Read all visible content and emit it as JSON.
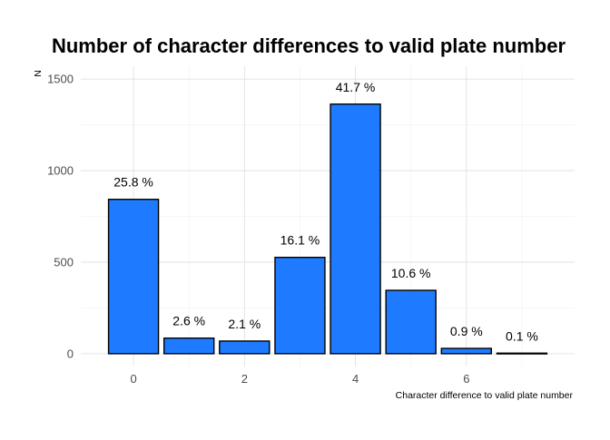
{
  "chart_data": {
    "type": "bar",
    "title": "Number of character differences to valid plate number",
    "xlabel": "Character difference to valid plate number",
    "ylabel": "N",
    "x": [
      0,
      1,
      2,
      3,
      4,
      5,
      6,
      7
    ],
    "values": [
      843,
      85,
      69,
      526,
      1363,
      346,
      29,
      3
    ],
    "bar_labels": [
      "25.8 %",
      "2.6 %",
      "2.1 %",
      "16.1 %",
      "41.7 %",
      "10.6 %",
      "0.9 %",
      "0.1 %"
    ],
    "x_ticks": [
      "0",
      "2",
      "4",
      "6"
    ],
    "x_tick_values": [
      0,
      2,
      4,
      6
    ],
    "y_ticks": [
      "0",
      "500",
      "1000",
      "1500"
    ],
    "y_tick_values": [
      0,
      500,
      1000,
      1500
    ],
    "xlim": [
      -0.95,
      7.95
    ],
    "ylim": [
      -70,
      1570
    ],
    "grid": true,
    "bar_color": "#1e7bff",
    "bar_edge_color": "#000000"
  }
}
